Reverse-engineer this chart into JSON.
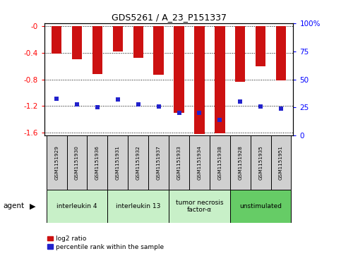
{
  "title": "GDS5261 / A_23_P151337",
  "samples": [
    "GSM1151929",
    "GSM1151930",
    "GSM1151936",
    "GSM1151931",
    "GSM1151932",
    "GSM1151937",
    "GSM1151933",
    "GSM1151934",
    "GSM1151938",
    "GSM1151928",
    "GSM1151935",
    "GSM1151951"
  ],
  "log2_ratio": [
    -0.41,
    -0.5,
    -0.72,
    -0.38,
    -0.47,
    -0.73,
    -1.3,
    -1.62,
    -1.61,
    -0.84,
    -0.6,
    -0.82
  ],
  "percentile_rank": [
    33,
    28,
    25,
    32,
    28,
    26,
    20,
    20,
    14,
    30,
    26,
    24
  ],
  "groups": [
    {
      "label": "interleukin 4",
      "indices": [
        0,
        1,
        2
      ],
      "color": "#c8f0c8"
    },
    {
      "label": "interleukin 13",
      "indices": [
        3,
        4,
        5
      ],
      "color": "#c8f0c8"
    },
    {
      "label": "tumor necrosis\nfactor-α",
      "indices": [
        6,
        7,
        8
      ],
      "color": "#c8f0c8"
    },
    {
      "label": "unstimulated",
      "indices": [
        9,
        10,
        11
      ],
      "color": "#66cc66"
    }
  ],
  "ylim_left": [
    -1.65,
    0.05
  ],
  "ylim_right": [
    0,
    100
  ],
  "bar_color": "#cc1111",
  "dot_color": "#2222cc",
  "bar_width": 0.5,
  "background_color": "#ffffff",
  "yticks_left": [
    -1.6,
    -1.2,
    -0.8,
    -0.4,
    0.0
  ],
  "yticks_right": [
    0,
    25,
    50,
    75,
    100
  ],
  "ytick_labels_left": [
    "-1.6",
    "-1.2",
    "-0.8",
    "-0.4",
    "-0"
  ],
  "ytick_labels_right": [
    "0",
    "25",
    "50",
    "75",
    "100%"
  ],
  "agent_label": "agent",
  "legend_log2": "log2 ratio",
  "legend_pct": "percentile rank within the sample",
  "sample_box_color": "#d0d0d0",
  "group_box_color_light": "#c8f0c8",
  "group_box_color_dark": "#66cc66"
}
